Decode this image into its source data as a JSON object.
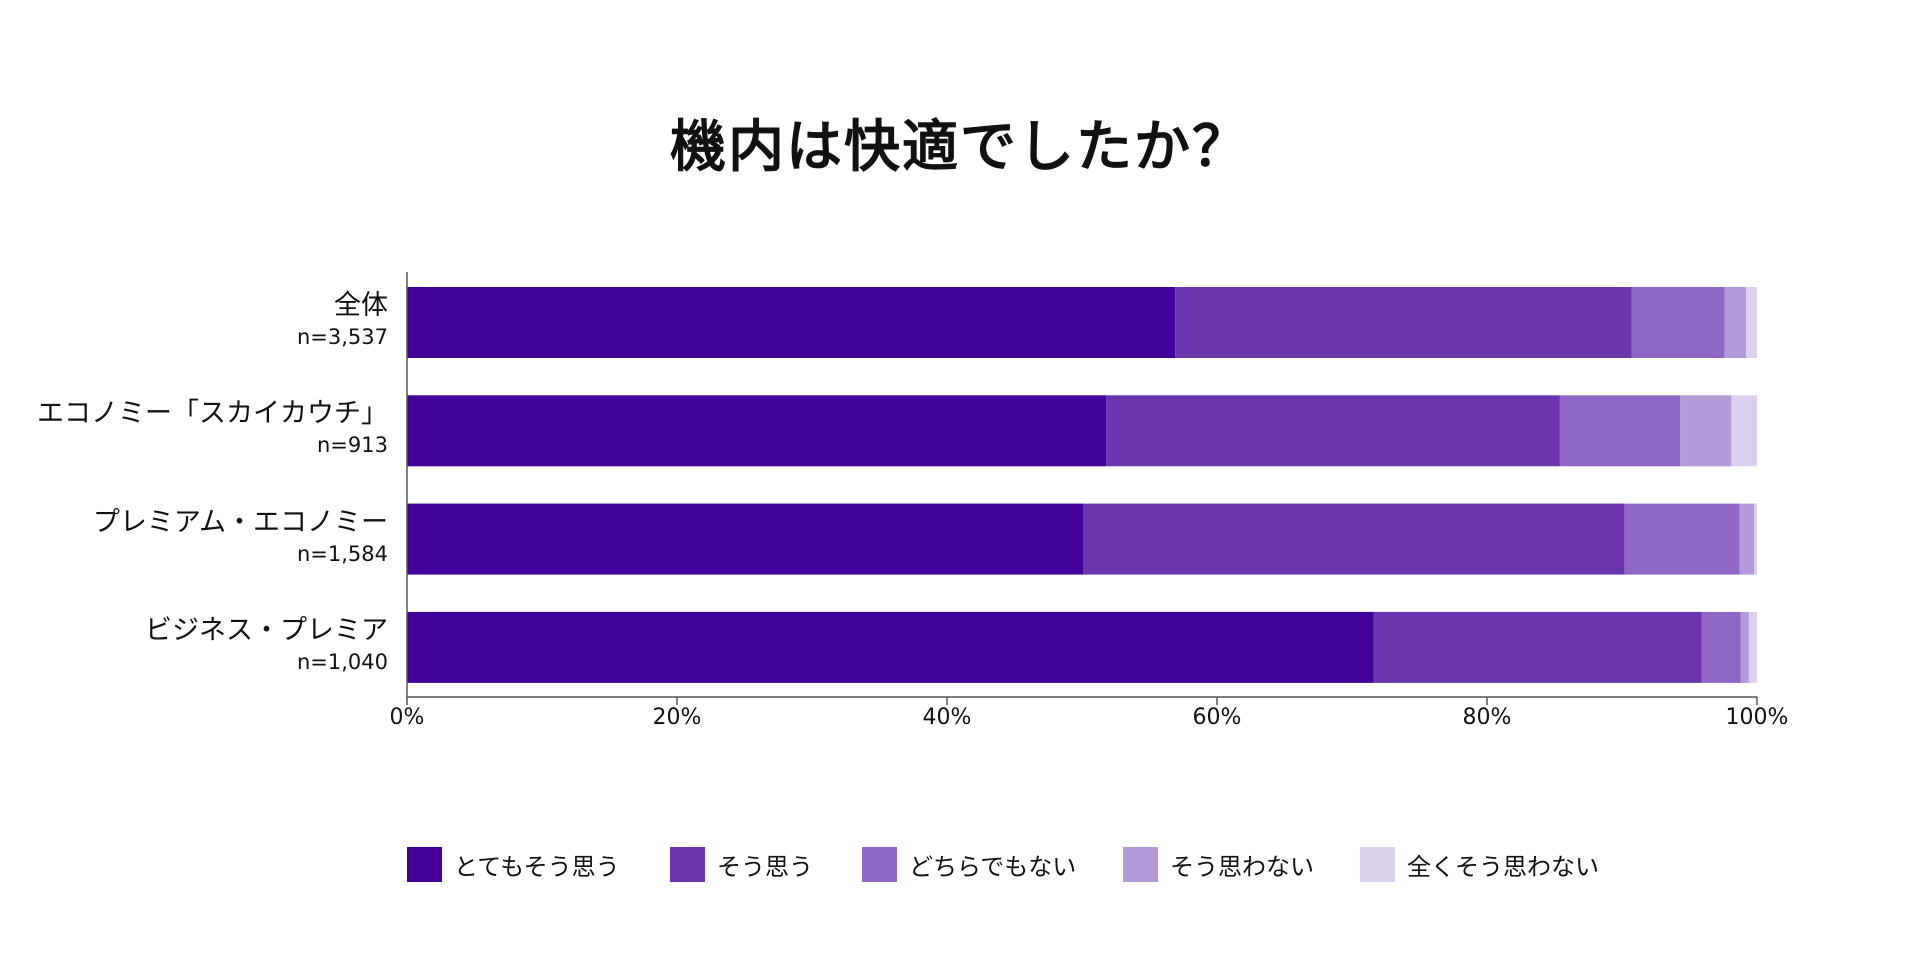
{
  "chart_data": {
    "type": "bar",
    "orientation": "horizontal",
    "stacked": true,
    "title": "機内は快適でしたか？",
    "xlabel": "",
    "ylabel": "",
    "xlim": [
      0,
      100
    ],
    "x_ticks": [
      "0%",
      "20%",
      "40%",
      "60%",
      "80%",
      "100%"
    ],
    "grid": false,
    "legend_position": "bottom",
    "categories": [
      {
        "label": "全体",
        "n": "n=3,537"
      },
      {
        "label": "エコノミー「スカイカウチ」",
        "n": "n=913"
      },
      {
        "label": "プレミアム・エコノミー",
        "n": "n=1,584"
      },
      {
        "label": "ビジネス・プレミア",
        "n": "n=1,040"
      }
    ],
    "series": [
      {
        "name": "とてもそう思う",
        "color": "#43009a",
        "values": [
          56.9,
          51.8,
          50.1,
          71.6
        ]
      },
      {
        "name": "そう思う",
        "color": "#6a35ad",
        "values": [
          33.8,
          33.6,
          40.1,
          24.3
        ]
      },
      {
        "name": "どちらでもない",
        "color": "#9067c4",
        "values": [
          6.9,
          8.9,
          8.5,
          2.9
        ]
      },
      {
        "name": "そう思わない",
        "color": "#b39bd9",
        "values": [
          1.6,
          3.8,
          1.1,
          0.6
        ]
      },
      {
        "name": "全くそう思わない",
        "color": "#dcd0ef",
        "values": [
          0.8,
          1.9,
          0.2,
          0.6
        ]
      }
    ]
  }
}
